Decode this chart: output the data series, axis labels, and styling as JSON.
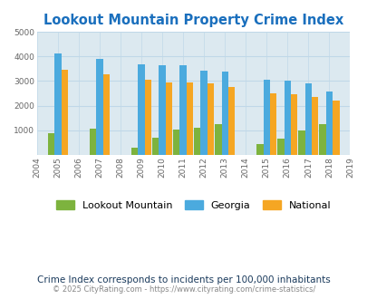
{
  "title": "Lookout Mountain Property Crime Index",
  "title_color": "#1a6fbd",
  "subtitle": "Crime Index corresponds to incidents per 100,000 inhabitants",
  "footer": "© 2025 CityRating.com - https://www.cityrating.com/crime-statistics/",
  "years": [
    2005,
    2007,
    2009,
    2010,
    2011,
    2012,
    2013,
    2015,
    2016,
    2017,
    2018
  ],
  "lookout_mountain": [
    880,
    1050,
    300,
    700,
    1020,
    1090,
    1230,
    430,
    670,
    1000,
    1260
  ],
  "georgia": [
    4130,
    3910,
    3680,
    3660,
    3660,
    3410,
    3370,
    3060,
    3010,
    2890,
    2590
  ],
  "national": [
    3470,
    3260,
    3050,
    2960,
    2940,
    2890,
    2760,
    2500,
    2460,
    2360,
    2210
  ],
  "color_lookout": "#7db33e",
  "color_georgia": "#4baade",
  "color_national": "#f5a623",
  "xlim_left": 2004,
  "xlim_right": 2019,
  "ylim": [
    0,
    5000
  ],
  "outer_bg": "#ffffff",
  "plot_bg": "#dce9f0",
  "grid_color": "#c0d8e8"
}
